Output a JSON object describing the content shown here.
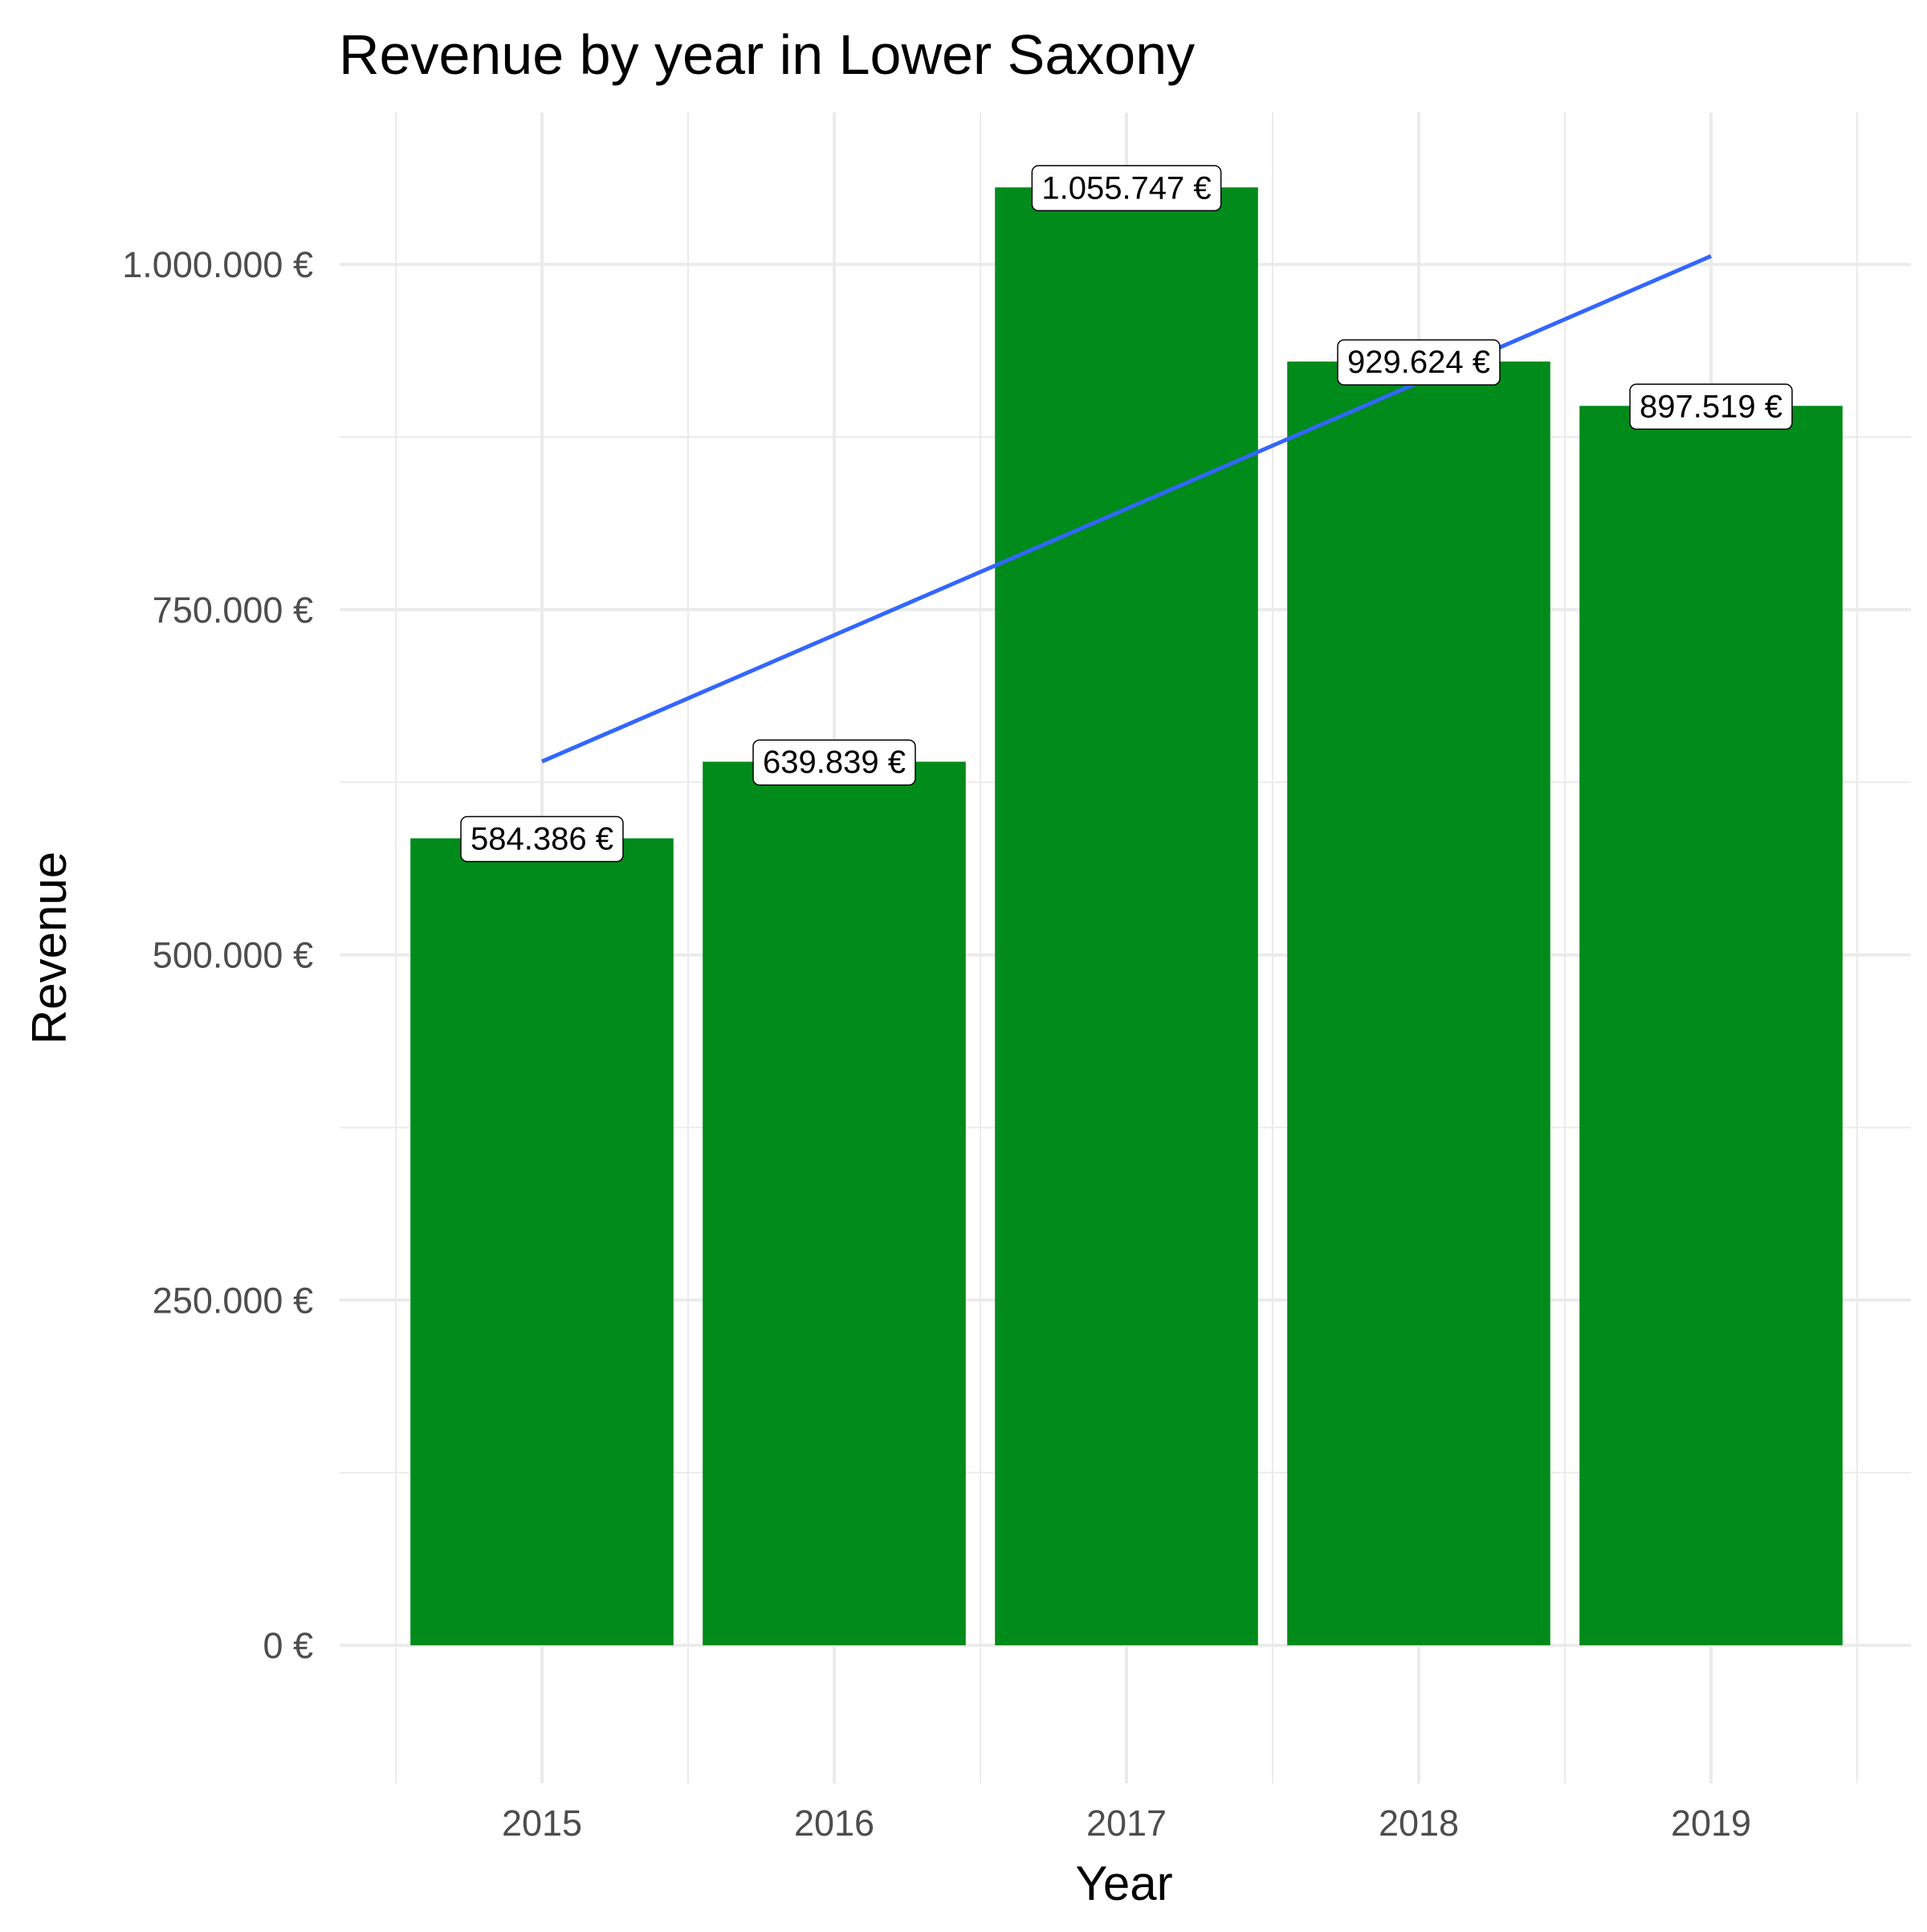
{
  "chart_data": {
    "type": "bar",
    "title": "Revenue by year in Lower Saxony",
    "xlabel": "Year",
    "ylabel": "Revenue",
    "categories": [
      "2015",
      "2016",
      "2017",
      "2018",
      "2019"
    ],
    "values": [
      584386,
      639839,
      1055747,
      929624,
      897519
    ],
    "data_labels": [
      "584.386 €",
      "639.839 €",
      "1.055.747 €",
      "929.624 €",
      "897.519 €"
    ],
    "bar_color": "#008B1A",
    "trend_line": {
      "type": "linear",
      "color": "#3366FF",
      "start": {
        "x": "2015",
        "y": 640000
      },
      "end": {
        "x": "2019",
        "y": 1006000
      }
    },
    "ylim": [
      -100000,
      1110000
    ],
    "y_major_ticks": [
      0,
      250000,
      500000,
      750000,
      1000000
    ],
    "y_tick_labels": [
      "0 €",
      "250.000 €",
      "500.000 €",
      "750.000 €",
      "1.000.000 €"
    ],
    "y_minor_ticks": [
      125000,
      375000,
      625000,
      875000
    ],
    "grid": true,
    "legend": "none"
  }
}
